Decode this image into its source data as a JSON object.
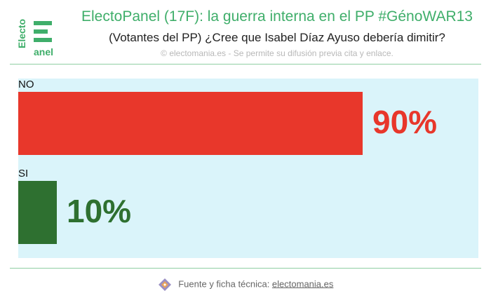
{
  "logo": {
    "top_text": "Electo",
    "bottom_text": "anel"
  },
  "header": {
    "title": "ElectoPanel (17F): la guerra interna en el PP #GénoWAR13",
    "subtitle": "(Votantes del PP) ¿Cree que Isabel Díaz Ayuso debería dimitir?",
    "copyright": "© electomania.es - Se permite su difusión previa cita y enlace."
  },
  "footer": {
    "prefix": "Fuente y ficha técnica: ",
    "link": "electomania.es"
  },
  "colors": {
    "accent": "#3fae6a",
    "plot_background": "#daf4fa",
    "no": "#e8372b",
    "si": "#2e7030"
  },
  "chart_data": {
    "type": "bar",
    "orientation": "horizontal",
    "categories": [
      "NO",
      "SI"
    ],
    "values": [
      90,
      10
    ],
    "value_labels": [
      "90%",
      "10%"
    ],
    "colors": [
      "#e8372b",
      "#2e7030"
    ],
    "xlim": [
      0,
      100
    ],
    "title": "ElectoPanel (17F): la guerra interna en el PP #GénoWAR13",
    "subtitle": "(Votantes del PP) ¿Cree que Isabel Díaz Ayuso debería dimitir?",
    "grid": false,
    "legend": false
  }
}
